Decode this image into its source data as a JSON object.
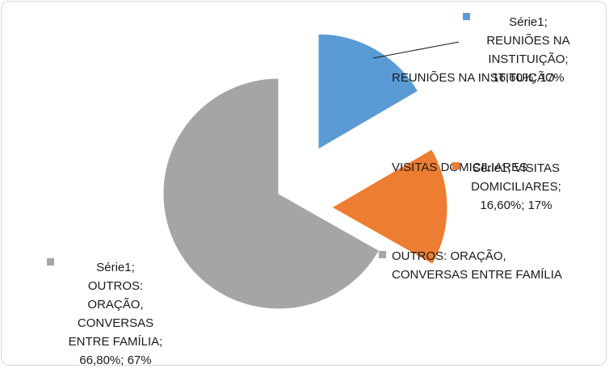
{
  "chart_data": {
    "type": "pie",
    "exploded": true,
    "series_name": "Série1",
    "slices": [
      {
        "category": "REUNIÕES NA INSTITUIÇÃO",
        "percent_text": "16,60%",
        "value": 16.6,
        "rounded_text": "17%",
        "color": "#5b9bd5",
        "legend_lines": [
          "REUNIÕES NA INSTITUIÇÃO"
        ],
        "data_label_lines": [
          "Série1;",
          "REUNIÕES NA",
          "INSTITUIÇÃO;",
          "16,60%; 17%"
        ]
      },
      {
        "category": "VISITAS DOMICILIARES",
        "percent_text": "16,60%",
        "value": 16.6,
        "rounded_text": "17%",
        "color": "#ed7d31",
        "legend_lines": [
          "VISITAS DOMICILIARES"
        ],
        "data_label_lines": [
          "Série1; VISITAS",
          "DOMICILIARES;",
          "16,60%; 17%"
        ]
      },
      {
        "category": "OUTROS: ORAÇÃO, CONVERSAS ENTRE FAMÍLIA",
        "percent_text": "66,80%",
        "value": 66.8,
        "rounded_text": "67%",
        "color": "#a5a5a5",
        "legend_lines": [
          "OUTROS: ORAÇÃO,",
          "CONVERSAS ENTRE FAMÍLIA"
        ],
        "data_label_lines": [
          "Série1;",
          "OUTROS:",
          "ORAÇÃO,",
          "CONVERSAS",
          "ENTRE FAMÍLIA;",
          "66,80%; 67%"
        ]
      }
    ]
  }
}
